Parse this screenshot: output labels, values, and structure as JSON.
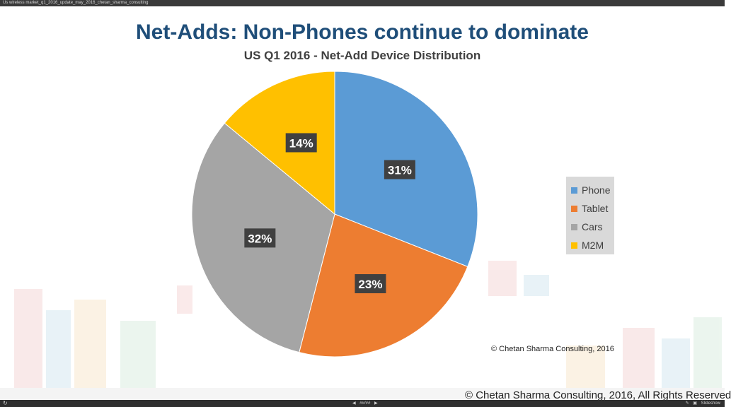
{
  "window": {
    "filename": "Us wireless market_q1_2016_update_may_2016_chetan_sharma_consulting"
  },
  "toolbar": {
    "refresh_icon": "refresh-icon",
    "prev_icon": "triangle-left-icon",
    "page_indicator": "##/##",
    "next_icon": "triangle-right-icon",
    "edit_icon": "pencil-icon",
    "slideshow_icon": "slideshow-icon",
    "slideshow_label": "Slideshow"
  },
  "slide": {
    "title": "Net-Adds: Non-Phones continue to dominate",
    "chart_copyright": "© Chetan Sharma Consulting, 2016",
    "footer": "© Chetan Sharma Consulting, 2016, All Rights Reserved"
  },
  "chart_data": {
    "type": "pie",
    "title": "US Q1 2016 - Net-Add Device Distribution",
    "categories": [
      "Phone",
      "Tablet",
      "Cars",
      "M2M"
    ],
    "values": [
      31,
      23,
      32,
      14
    ],
    "data_labels": [
      "31%",
      "23%",
      "32%",
      "14%"
    ],
    "colors": [
      "#5b9bd5",
      "#ed7d31",
      "#a5a5a5",
      "#ffc000"
    ],
    "legend_position": "right"
  }
}
